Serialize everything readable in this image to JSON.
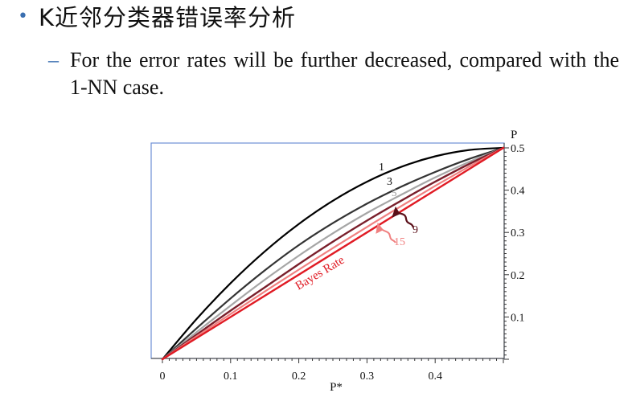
{
  "slide": {
    "bullet": "K近邻分类器错误率分析",
    "subpoint": "For the error rates will be further decreased, compared with the 1-NN case."
  },
  "colors": {
    "bullet_marker": "#3a6fb0",
    "frame": "#6d8fd6"
  },
  "chart_data": {
    "type": "line",
    "title": "",
    "xlabel": "P*",
    "ylabel": "P",
    "xlim": [
      0,
      0.5
    ],
    "ylim": [
      0,
      0.5
    ],
    "x_ticks": [
      "0",
      "0.1",
      "0.2",
      "0.3",
      "0.4"
    ],
    "y_ticks": [
      "0.1",
      "0.2",
      "0.3",
      "0.4",
      "0.5"
    ],
    "y_axis_side": "right",
    "grid": false,
    "series": [
      {
        "name": "1",
        "color": "#000000",
        "x": [
          0,
          0.05,
          0.1,
          0.15,
          0.2,
          0.25,
          0.3,
          0.35,
          0.4,
          0.45,
          0.5
        ],
        "y": [
          0,
          0.095,
          0.18,
          0.255,
          0.32,
          0.375,
          0.42,
          0.455,
          0.48,
          0.495,
          0.5
        ]
      },
      {
        "name": "3",
        "color": "#333333",
        "x": [
          0,
          0.05,
          0.1,
          0.15,
          0.2,
          0.25,
          0.3,
          0.35,
          0.4,
          0.45,
          0.5
        ],
        "y": [
          0,
          0.073,
          0.144,
          0.21,
          0.27,
          0.322,
          0.368,
          0.408,
          0.443,
          0.474,
          0.5
        ]
      },
      {
        "name": "5",
        "color": "#a6a6a6",
        "x": [
          0,
          0.05,
          0.1,
          0.15,
          0.2,
          0.25,
          0.3,
          0.35,
          0.4,
          0.45,
          0.5
        ],
        "y": [
          0,
          0.064,
          0.127,
          0.188,
          0.245,
          0.298,
          0.346,
          0.389,
          0.43,
          0.467,
          0.5
        ]
      },
      {
        "name": "9",
        "color": "#7a1f2b",
        "x": [
          0,
          0.05,
          0.1,
          0.15,
          0.2,
          0.25,
          0.3,
          0.35,
          0.4,
          0.45,
          0.5
        ],
        "y": [
          0,
          0.058,
          0.115,
          0.17,
          0.225,
          0.278,
          0.328,
          0.375,
          0.42,
          0.462,
          0.5
        ]
      },
      {
        "name": "15",
        "color": "#f08080",
        "x": [
          0,
          0.05,
          0.1,
          0.15,
          0.2,
          0.25,
          0.3,
          0.35,
          0.4,
          0.45,
          0.5
        ],
        "y": [
          0,
          0.054,
          0.107,
          0.16,
          0.212,
          0.263,
          0.313,
          0.362,
          0.41,
          0.456,
          0.5
        ]
      },
      {
        "name": "Bayes Rate",
        "color": "#e01b24",
        "x": [
          0,
          0.5
        ],
        "y": [
          0,
          0.5
        ]
      }
    ]
  }
}
